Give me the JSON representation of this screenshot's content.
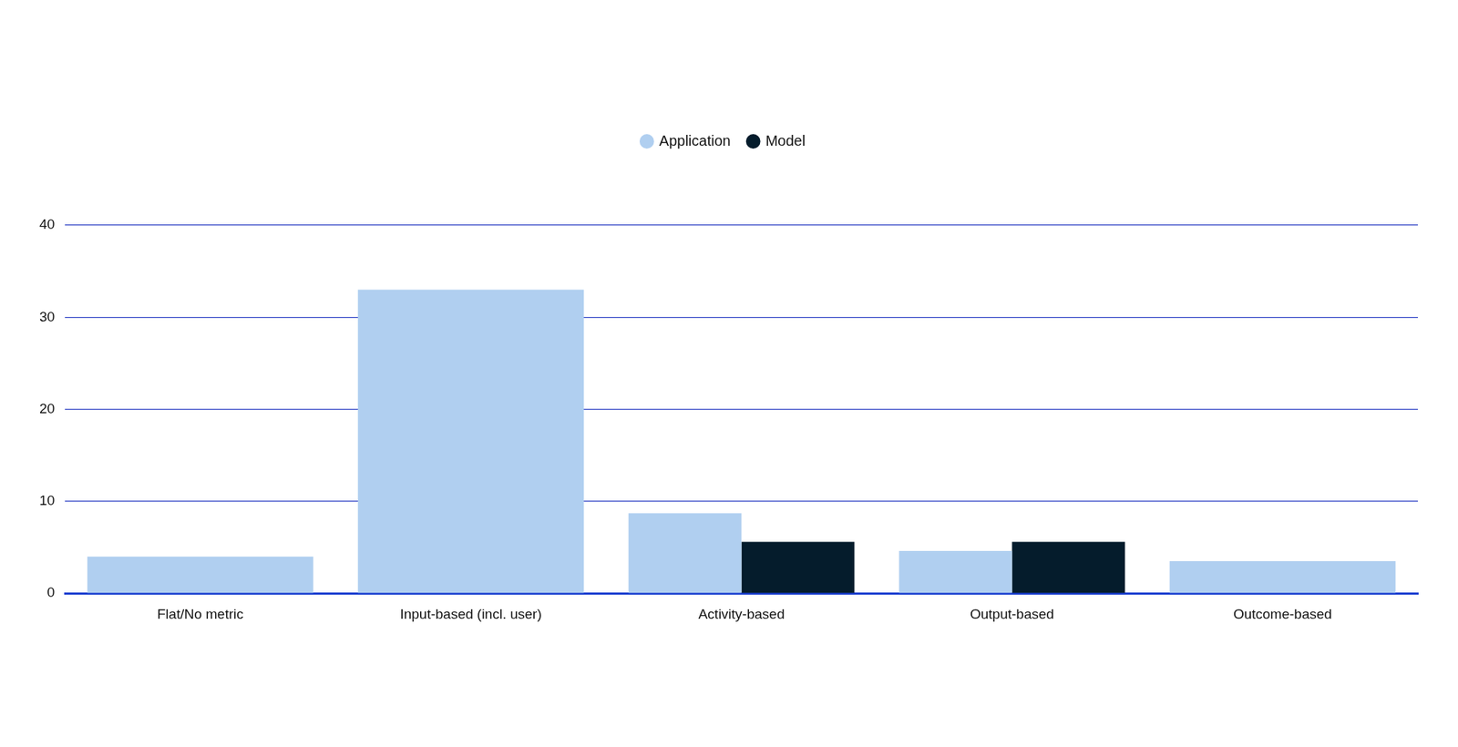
{
  "chart_data": {
    "type": "bar",
    "categories": [
      "Flat/No metric",
      "Input-based (incl. user)",
      "Activity-based",
      "Output-based",
      "Outcome-based"
    ],
    "series": [
      {
        "name": "Application",
        "color": "#b0cff0",
        "values": [
          4,
          33,
          8.7,
          4.6,
          3.5
        ]
      },
      {
        "name": "Model",
        "color": "#051c2c",
        "values": [
          null,
          null,
          5.6,
          5.6,
          null
        ]
      }
    ],
    "ylim": [
      0,
      40
    ],
    "yticks": [
      0,
      10,
      20,
      30,
      40
    ],
    "grid": true,
    "legend": "top"
  }
}
